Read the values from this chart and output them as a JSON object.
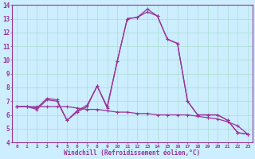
{
  "xlabel": "Windchill (Refroidissement éolien,°C)",
  "x": [
    0,
    1,
    2,
    3,
    4,
    5,
    6,
    7,
    8,
    9,
    10,
    11,
    12,
    13,
    14,
    15,
    16,
    17,
    18,
    19,
    20,
    21,
    22,
    23
  ],
  "series1": [
    6.6,
    6.6,
    6.5,
    7.2,
    7.1,
    5.6,
    6.3,
    6.7,
    8.1,
    6.6,
    9.9,
    13.0,
    13.1,
    13.7,
    13.2,
    11.5,
    11.2,
    7.0,
    6.0,
    6.0,
    6.0,
    5.6,
    4.7,
    4.6
  ],
  "series2": [
    6.6,
    6.6,
    6.4,
    7.1,
    7.0,
    5.6,
    6.2,
    6.6,
    8.1,
    6.5,
    9.9,
    13.0,
    13.1,
    13.5,
    13.2,
    11.5,
    11.2,
    7.0,
    6.0,
    6.0,
    6.0,
    5.6,
    4.7,
    4.6
  ],
  "series3": [
    6.6,
    6.6,
    6.6,
    6.6,
    6.6,
    6.6,
    6.5,
    6.4,
    6.4,
    6.3,
    6.2,
    6.2,
    6.1,
    6.1,
    6.0,
    6.0,
    6.0,
    6.0,
    5.9,
    5.8,
    5.7,
    5.5,
    5.2,
    4.6
  ],
  "color": "#993399",
  "bg_color": "#cceeff",
  "grid_color": "#aaddcc",
  "ylim": [
    4,
    14
  ],
  "xlim_min": -0.5,
  "xlim_max": 23.5,
  "yticks": [
    4,
    5,
    6,
    7,
    8,
    9,
    10,
    11,
    12,
    13,
    14
  ],
  "xtick_labels": [
    "0",
    "1",
    "2",
    "3",
    "4",
    "5",
    "6",
    "7",
    "8",
    "9",
    "10",
    "11",
    "12",
    "13",
    "14",
    "15",
    "16",
    "17",
    "18",
    "19",
    "20",
    "21",
    "22",
    "23"
  ]
}
